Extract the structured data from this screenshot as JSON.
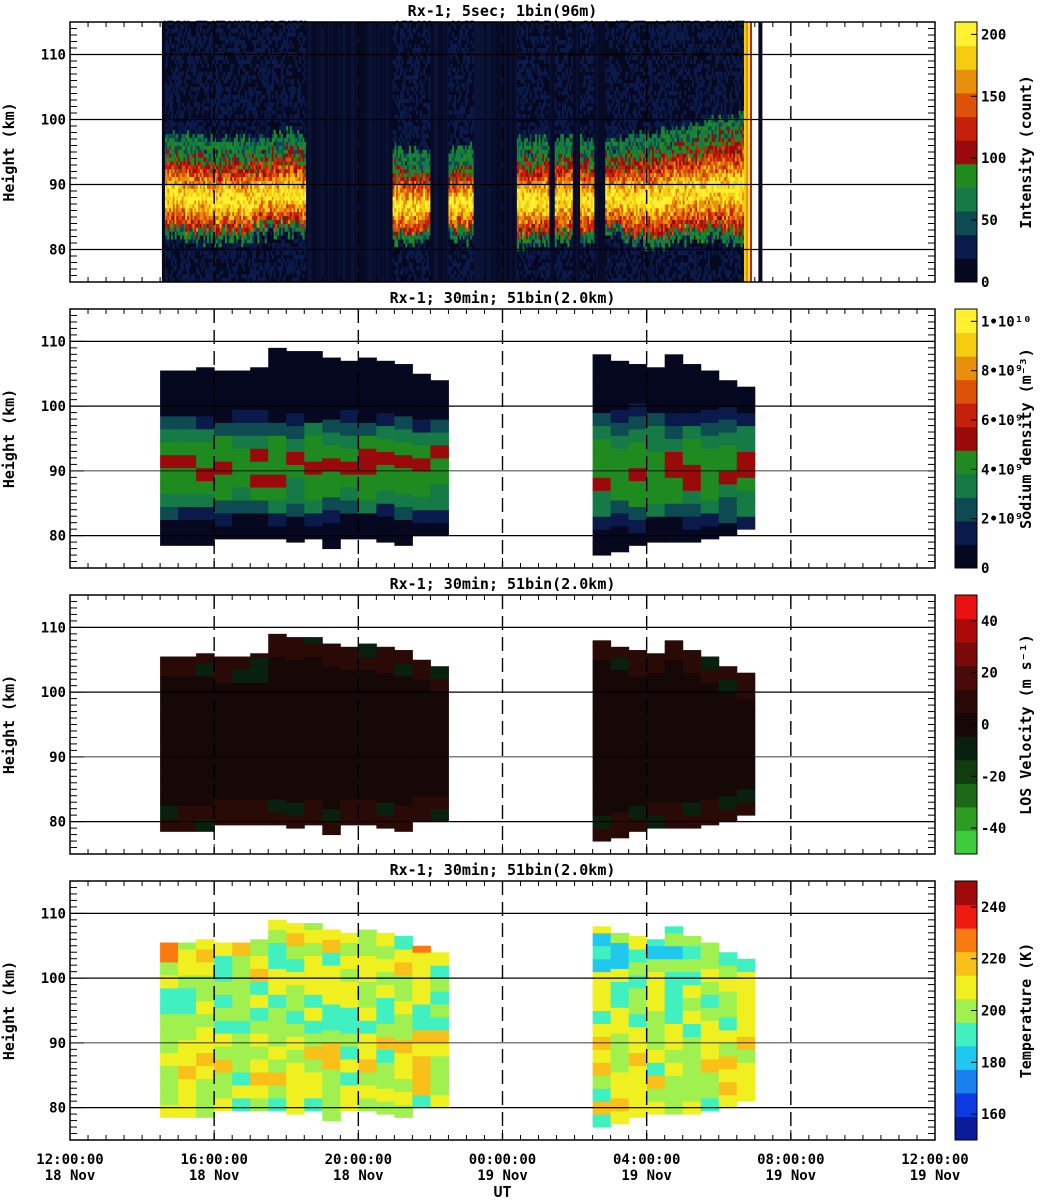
{
  "chart_data": [
    {
      "type": "heatmap",
      "title": "Rx-1;  5sec; 1bin(96m)",
      "ylabel": "Height (km)",
      "ylim": [
        75,
        115
      ],
      "yticks": [
        80,
        90,
        100,
        110
      ],
      "colorbar": {
        "label": "Intensity (count)",
        "range": [
          0,
          210
        ],
        "ticks": [
          {
            "value": 0,
            "label": "0"
          },
          {
            "value": 50,
            "label": "50"
          },
          {
            "value": 100,
            "label": "100"
          },
          {
            "value": 150,
            "label": "150"
          },
          {
            "value": 200,
            "label": "200"
          }
        ],
        "colors": [
          "#05081f",
          "#0a1a4a",
          "#0e4a52",
          "#157a45",
          "#1f8a1f",
          "#9a0a0a",
          "#c4200a",
          "#db5208",
          "#e8900c",
          "#f5cc10",
          "#fff030"
        ]
      },
      "coverage": [
        {
          "start": 14.6,
          "end": 18.55
        },
        {
          "start": 20.95,
          "end": 22.0
        },
        {
          "start": 22.5,
          "end": 23.2
        },
        {
          "start": 24.4,
          "end": 25.3
        },
        {
          "start": 25.45,
          "end": 25.95
        },
        {
          "start": 26.15,
          "end": 26.55
        },
        {
          "start": 26.85,
          "end": 30.7
        }
      ],
      "layer_edges": [
        {
          "t": 14.6,
          "bot": 83.0,
          "top": 96.0
        },
        {
          "t": 15.5,
          "bot": 82.5,
          "top": 95.5
        },
        {
          "t": 16.5,
          "bot": 82.5,
          "top": 95.0
        },
        {
          "t": 17.5,
          "bot": 83.5,
          "top": 95.5
        },
        {
          "t": 18.0,
          "bot": 84.0,
          "top": 96.5
        },
        {
          "t": 18.5,
          "bot": 83.0,
          "top": 95.5
        },
        {
          "t": 19.0,
          "bot": 82.5,
          "top": 96.0
        },
        {
          "t": 20.0,
          "bot": 81.5,
          "top": 95.0
        },
        {
          "t": 21.0,
          "bot": 82.0,
          "top": 94.0
        },
        {
          "t": 22.0,
          "bot": 83.0,
          "top": 93.0
        },
        {
          "t": 24.4,
          "bot": 82.0,
          "top": 95.0
        },
        {
          "t": 27.0,
          "bot": 83.0,
          "top": 95.5
        },
        {
          "t": 28.0,
          "bot": 82.0,
          "top": 96.0
        },
        {
          "t": 29.0,
          "bot": 82.5,
          "top": 97.0
        },
        {
          "t": 30.0,
          "bot": 83.0,
          "top": 98.5
        },
        {
          "t": 30.7,
          "bot": 82.0,
          "top": 99.0
        }
      ]
    },
    {
      "type": "heatmap",
      "title": "Rx-1; 30min; 51bin(2.0km)",
      "ylabel": "Height (km)",
      "ylim": [
        75,
        115
      ],
      "yticks": [
        80,
        90,
        100,
        110
      ],
      "colorbar": {
        "label": "Sodium density (m⁻³)",
        "range": [
          0,
          10500000000.0
        ],
        "ticks": [
          {
            "value": 0,
            "label": "0"
          },
          {
            "value": 2000000000.0,
            "label": "2•10⁹"
          },
          {
            "value": 4000000000.0,
            "label": "4•10⁹"
          },
          {
            "value": 6000000000.0,
            "label": "6•10⁹"
          },
          {
            "value": 8000000000.0,
            "label": "8•10⁹"
          },
          {
            "value": 10000000000.0,
            "label": "1•10¹⁰"
          }
        ],
        "colors": [
          "#05081f",
          "#0a1a4a",
          "#0e4a52",
          "#157a45",
          "#1f8a1f",
          "#9a0a0a",
          "#c4200a",
          "#db5208",
          "#e8900c",
          "#f5cc10",
          "#fff030"
        ]
      },
      "columns": [
        {
          "t": 14.5,
          "bot": 78.5,
          "top": 105.5
        },
        {
          "t": 15.0,
          "bot": 78.5,
          "top": 105.5
        },
        {
          "t": 15.5,
          "bot": 78.5,
          "top": 106.0
        },
        {
          "t": 16.0,
          "bot": 79.5,
          "top": 105.5
        },
        {
          "t": 16.5,
          "bot": 79.5,
          "top": 105.5
        },
        {
          "t": 17.0,
          "bot": 79.5,
          "top": 106.0
        },
        {
          "t": 17.5,
          "bot": 79.5,
          "top": 109.0
        },
        {
          "t": 18.0,
          "bot": 79.0,
          "top": 108.5
        },
        {
          "t": 18.5,
          "bot": 79.5,
          "top": 108.5
        },
        {
          "t": 19.0,
          "bot": 78.0,
          "top": 107.5
        },
        {
          "t": 19.5,
          "bot": 79.5,
          "top": 107.0
        },
        {
          "t": 20.0,
          "bot": 79.5,
          "top": 107.5
        },
        {
          "t": 20.5,
          "bot": 79.0,
          "top": 107.0
        },
        {
          "t": 21.0,
          "bot": 78.5,
          "top": 106.5
        },
        {
          "t": 21.5,
          "bot": 80.0,
          "top": 105.0
        },
        {
          "t": 22.0,
          "bot": 80.0,
          "top": 104.0
        },
        {
          "t": 26.5,
          "bot": 77.0,
          "top": 108.0
        },
        {
          "t": 27.0,
          "bot": 77.5,
          "top": 107.0
        },
        {
          "t": 27.5,
          "bot": 78.5,
          "top": 106.5
        },
        {
          "t": 28.0,
          "bot": 79.0,
          "top": 106.0
        },
        {
          "t": 28.5,
          "bot": 79.0,
          "top": 108.0
        },
        {
          "t": 29.0,
          "bot": 79.0,
          "top": 106.5
        },
        {
          "t": 29.5,
          "bot": 79.5,
          "top": 105.5
        },
        {
          "t": 30.0,
          "bot": 80.0,
          "top": 104.0
        },
        {
          "t": 30.5,
          "bot": 81.0,
          "top": 103.0
        }
      ]
    },
    {
      "type": "heatmap",
      "title": "Rx-1; 30min; 51bin(2.0km)",
      "ylabel": "Height (km)",
      "ylim": [
        75,
        115
      ],
      "yticks": [
        80,
        90,
        100,
        110
      ],
      "colorbar": {
        "label": "LOS Velocity (m s⁻¹)",
        "range": [
          -50,
          50
        ],
        "ticks": [
          {
            "value": -40,
            "label": "-40"
          },
          {
            "value": -20,
            "label": "-20"
          },
          {
            "value": 0,
            "label": "0"
          },
          {
            "value": 20,
            "label": "20"
          },
          {
            "value": 40,
            "label": "40"
          }
        ],
        "colors": [
          "#3ccc3c",
          "#2c9c22",
          "#1c6a18",
          "#103c10",
          "#0a200e",
          "#160806",
          "#2a0a06",
          "#4a0a0a",
          "#7a0a0a",
          "#ac0a0a",
          "#e81010"
        ]
      },
      "dominant_value": 2,
      "columns": "same as panel 2"
    },
    {
      "type": "heatmap",
      "title": "Rx-1; 30min; 51bin(2.0km)",
      "ylabel": "Height (km)",
      "ylim": [
        75,
        115
      ],
      "yticks": [
        80,
        90,
        100,
        110
      ],
      "xlabel": "UT",
      "colorbar": {
        "label": "Temperature (K)",
        "range": [
          150,
          250
        ],
        "ticks": [
          {
            "value": 160,
            "label": "160"
          },
          {
            "value": 180,
            "label": "180"
          },
          {
            "value": 200,
            "label": "200"
          },
          {
            "value": 220,
            "label": "220"
          },
          {
            "value": 240,
            "label": "240"
          }
        ],
        "colors": [
          "#0a1a9a",
          "#0a3ae0",
          "#1a80f0",
          "#20c8f0",
          "#40f0c0",
          "#a0f050",
          "#f0f020",
          "#f8c018",
          "#f87a10",
          "#f01a10",
          "#a00a0a"
        ]
      },
      "columns": "same as panel 2"
    }
  ],
  "xaxis": {
    "range_hours": [
      12,
      36
    ],
    "xlabel": "UT",
    "ticks": [
      {
        "hour": 12,
        "time": "12:00:00",
        "date": "18 Nov"
      },
      {
        "hour": 16,
        "time": "16:00:00",
        "date": "18 Nov"
      },
      {
        "hour": 20,
        "time": "20:00:00",
        "date": "18 Nov"
      },
      {
        "hour": 24,
        "time": "00:00:00",
        "date": "19 Nov"
      },
      {
        "hour": 28,
        "time": "04:00:00",
        "date": "19 Nov"
      },
      {
        "hour": 32,
        "time": "08:00:00",
        "date": "19 Nov"
      },
      {
        "hour": 36,
        "time": "12:00:00",
        "date": "19 Nov"
      }
    ]
  }
}
